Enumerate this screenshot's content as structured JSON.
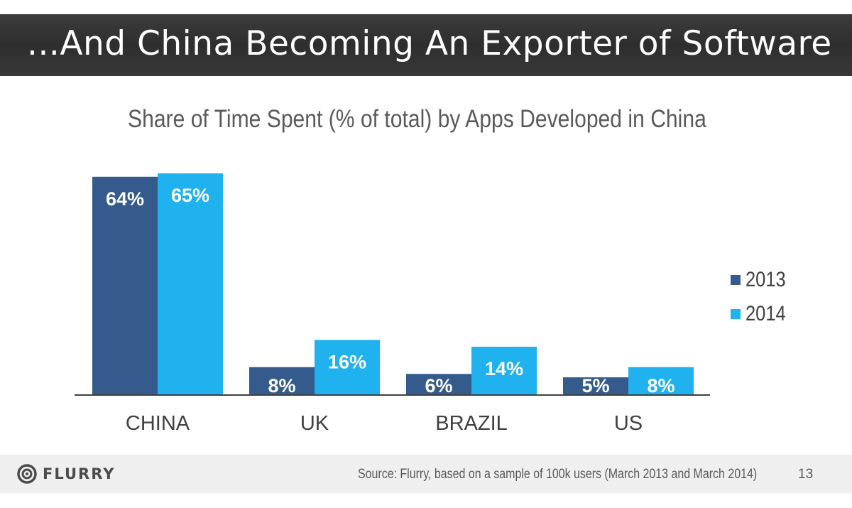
{
  "header": {
    "title": "...And China Becoming An Exporter of Software"
  },
  "colors": {
    "2013": "#345b8c",
    "2014": "#1fb2ee",
    "header_bg": "#333333",
    "footer_bg": "#efefef"
  },
  "chart_data": {
    "type": "bar",
    "title": "Share of Time Spent (% of total) by Apps Developed in China",
    "categories": [
      "CHINA",
      "UK",
      "BRAZIL",
      "US"
    ],
    "series": [
      {
        "name": "2013",
        "values": [
          64,
          8,
          6,
          5
        ],
        "labels": [
          "64%",
          "8%",
          "6%",
          "5%"
        ],
        "color": "#345b8c"
      },
      {
        "name": "2014",
        "values": [
          65,
          16,
          14,
          8
        ],
        "labels": [
          "65%",
          "16%",
          "14%",
          "8%"
        ],
        "color": "#1fb2ee"
      }
    ],
    "ylim": [
      0,
      65
    ],
    "xlabel": "",
    "ylabel": "",
    "grid": false,
    "legend": "right"
  },
  "footer": {
    "logo_text": "FLURRY",
    "source": "Source: Flurry, based on a sample of 100k users (March 2013 and March 2014)",
    "page_number": "13"
  }
}
